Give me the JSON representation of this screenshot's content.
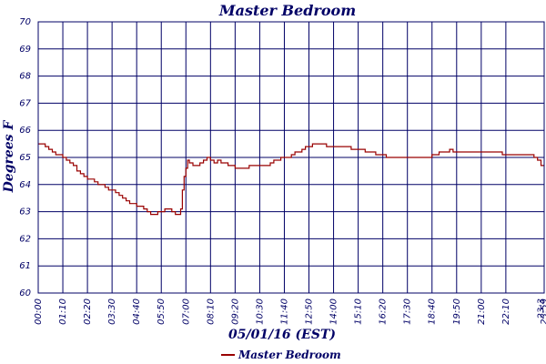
{
  "chart_data": {
    "type": "line",
    "title": "Master Bedroom",
    "xlabel": "05/01/16 (EST)",
    "ylabel": "Degrees F",
    "ylim": [
      60,
      70
    ],
    "y_ticks": [
      "60",
      "61",
      "62",
      "63",
      "64",
      "65",
      "66",
      "67",
      "68",
      "69",
      "70"
    ],
    "x_ticks": [
      "00:00",
      "01:10",
      "02:20",
      "03:30",
      "04:40",
      "05:50",
      "07:00",
      "08:10",
      "09:20",
      "10:30",
      "11:40",
      "12:50",
      "14:00",
      "15:10",
      "16:20",
      "17:30",
      "18:40",
      "19:50",
      "21:00",
      "22:10",
      "23:3",
      "23:59"
    ],
    "grid": true,
    "legend_position": "bottom",
    "colors": {
      "series": "#990000",
      "grid": "#000066",
      "text": "#000066"
    },
    "series": [
      {
        "name": "Master Bedroom",
        "points": [
          [
            0,
            65.5
          ],
          [
            10,
            65.5
          ],
          [
            20,
            65.4
          ],
          [
            30,
            65.3
          ],
          [
            40,
            65.2
          ],
          [
            50,
            65.1
          ],
          [
            60,
            65.1
          ],
          [
            70,
            65.0
          ],
          [
            80,
            64.9
          ],
          [
            90,
            64.8
          ],
          [
            100,
            64.7
          ],
          [
            110,
            64.5
          ],
          [
            120,
            64.4
          ],
          [
            130,
            64.3
          ],
          [
            140,
            64.2
          ],
          [
            150,
            64.2
          ],
          [
            160,
            64.1
          ],
          [
            170,
            64.0
          ],
          [
            180,
            64.0
          ],
          [
            190,
            63.9
          ],
          [
            200,
            63.8
          ],
          [
            210,
            63.8
          ],
          [
            220,
            63.7
          ],
          [
            230,
            63.6
          ],
          [
            240,
            63.5
          ],
          [
            250,
            63.4
          ],
          [
            260,
            63.3
          ],
          [
            270,
            63.3
          ],
          [
            280,
            63.2
          ],
          [
            290,
            63.2
          ],
          [
            300,
            63.1
          ],
          [
            310,
            63.0
          ],
          [
            320,
            62.9
          ],
          [
            330,
            62.9
          ],
          [
            340,
            63.0
          ],
          [
            350,
            63.0
          ],
          [
            360,
            63.1
          ],
          [
            370,
            63.1
          ],
          [
            380,
            63.0
          ],
          [
            390,
            62.9
          ],
          [
            400,
            62.9
          ],
          [
            405,
            63.1
          ],
          [
            410,
            63.8
          ],
          [
            415,
            64.3
          ],
          [
            420,
            64.6
          ],
          [
            425,
            64.9
          ],
          [
            430,
            64.8
          ],
          [
            440,
            64.7
          ],
          [
            450,
            64.7
          ],
          [
            460,
            64.8
          ],
          [
            470,
            64.9
          ],
          [
            480,
            65.0
          ],
          [
            490,
            64.9
          ],
          [
            500,
            64.8
          ],
          [
            510,
            64.9
          ],
          [
            520,
            64.8
          ],
          [
            530,
            64.8
          ],
          [
            540,
            64.7
          ],
          [
            550,
            64.7
          ],
          [
            560,
            64.6
          ],
          [
            570,
            64.6
          ],
          [
            580,
            64.6
          ],
          [
            590,
            64.6
          ],
          [
            600,
            64.7
          ],
          [
            610,
            64.7
          ],
          [
            620,
            64.7
          ],
          [
            630,
            64.7
          ],
          [
            640,
            64.7
          ],
          [
            650,
            64.7
          ],
          [
            660,
            64.8
          ],
          [
            670,
            64.9
          ],
          [
            680,
            64.9
          ],
          [
            690,
            65.0
          ],
          [
            700,
            65.0
          ],
          [
            710,
            65.0
          ],
          [
            720,
            65.1
          ],
          [
            730,
            65.2
          ],
          [
            740,
            65.2
          ],
          [
            750,
            65.3
          ],
          [
            760,
            65.4
          ],
          [
            770,
            65.4
          ],
          [
            780,
            65.5
          ],
          [
            790,
            65.5
          ],
          [
            800,
            65.5
          ],
          [
            810,
            65.5
          ],
          [
            820,
            65.4
          ],
          [
            830,
            65.4
          ],
          [
            840,
            65.4
          ],
          [
            850,
            65.4
          ],
          [
            860,
            65.4
          ],
          [
            870,
            65.4
          ],
          [
            880,
            65.4
          ],
          [
            890,
            65.3
          ],
          [
            900,
            65.3
          ],
          [
            910,
            65.3
          ],
          [
            920,
            65.3
          ],
          [
            930,
            65.2
          ],
          [
            940,
            65.2
          ],
          [
            950,
            65.2
          ],
          [
            960,
            65.1
          ],
          [
            970,
            65.1
          ],
          [
            980,
            65.1
          ],
          [
            990,
            65.0
          ],
          [
            1000,
            65.0
          ],
          [
            1010,
            65.0
          ],
          [
            1020,
            65.0
          ],
          [
            1030,
            65.0
          ],
          [
            1040,
            65.0
          ],
          [
            1050,
            65.0
          ],
          [
            1060,
            65.0
          ],
          [
            1070,
            65.0
          ],
          [
            1080,
            65.0
          ],
          [
            1090,
            65.0
          ],
          [
            1100,
            65.0
          ],
          [
            1110,
            65.0
          ],
          [
            1120,
            65.1
          ],
          [
            1130,
            65.1
          ],
          [
            1140,
            65.2
          ],
          [
            1150,
            65.2
          ],
          [
            1160,
            65.2
          ],
          [
            1170,
            65.3
          ],
          [
            1180,
            65.2
          ],
          [
            1190,
            65.2
          ],
          [
            1200,
            65.2
          ],
          [
            1210,
            65.2
          ],
          [
            1220,
            65.2
          ],
          [
            1230,
            65.2
          ],
          [
            1240,
            65.2
          ],
          [
            1250,
            65.2
          ],
          [
            1260,
            65.2
          ],
          [
            1270,
            65.2
          ],
          [
            1280,
            65.2
          ],
          [
            1290,
            65.2
          ],
          [
            1300,
            65.2
          ],
          [
            1310,
            65.2
          ],
          [
            1320,
            65.1
          ],
          [
            1330,
            65.1
          ],
          [
            1340,
            65.1
          ],
          [
            1350,
            65.1
          ],
          [
            1360,
            65.1
          ],
          [
            1370,
            65.1
          ],
          [
            1380,
            65.1
          ],
          [
            1390,
            65.1
          ],
          [
            1400,
            65.1
          ],
          [
            1410,
            65.0
          ],
          [
            1420,
            64.9
          ],
          [
            1430,
            64.7
          ],
          [
            1439,
            64.7
          ]
        ]
      }
    ]
  }
}
